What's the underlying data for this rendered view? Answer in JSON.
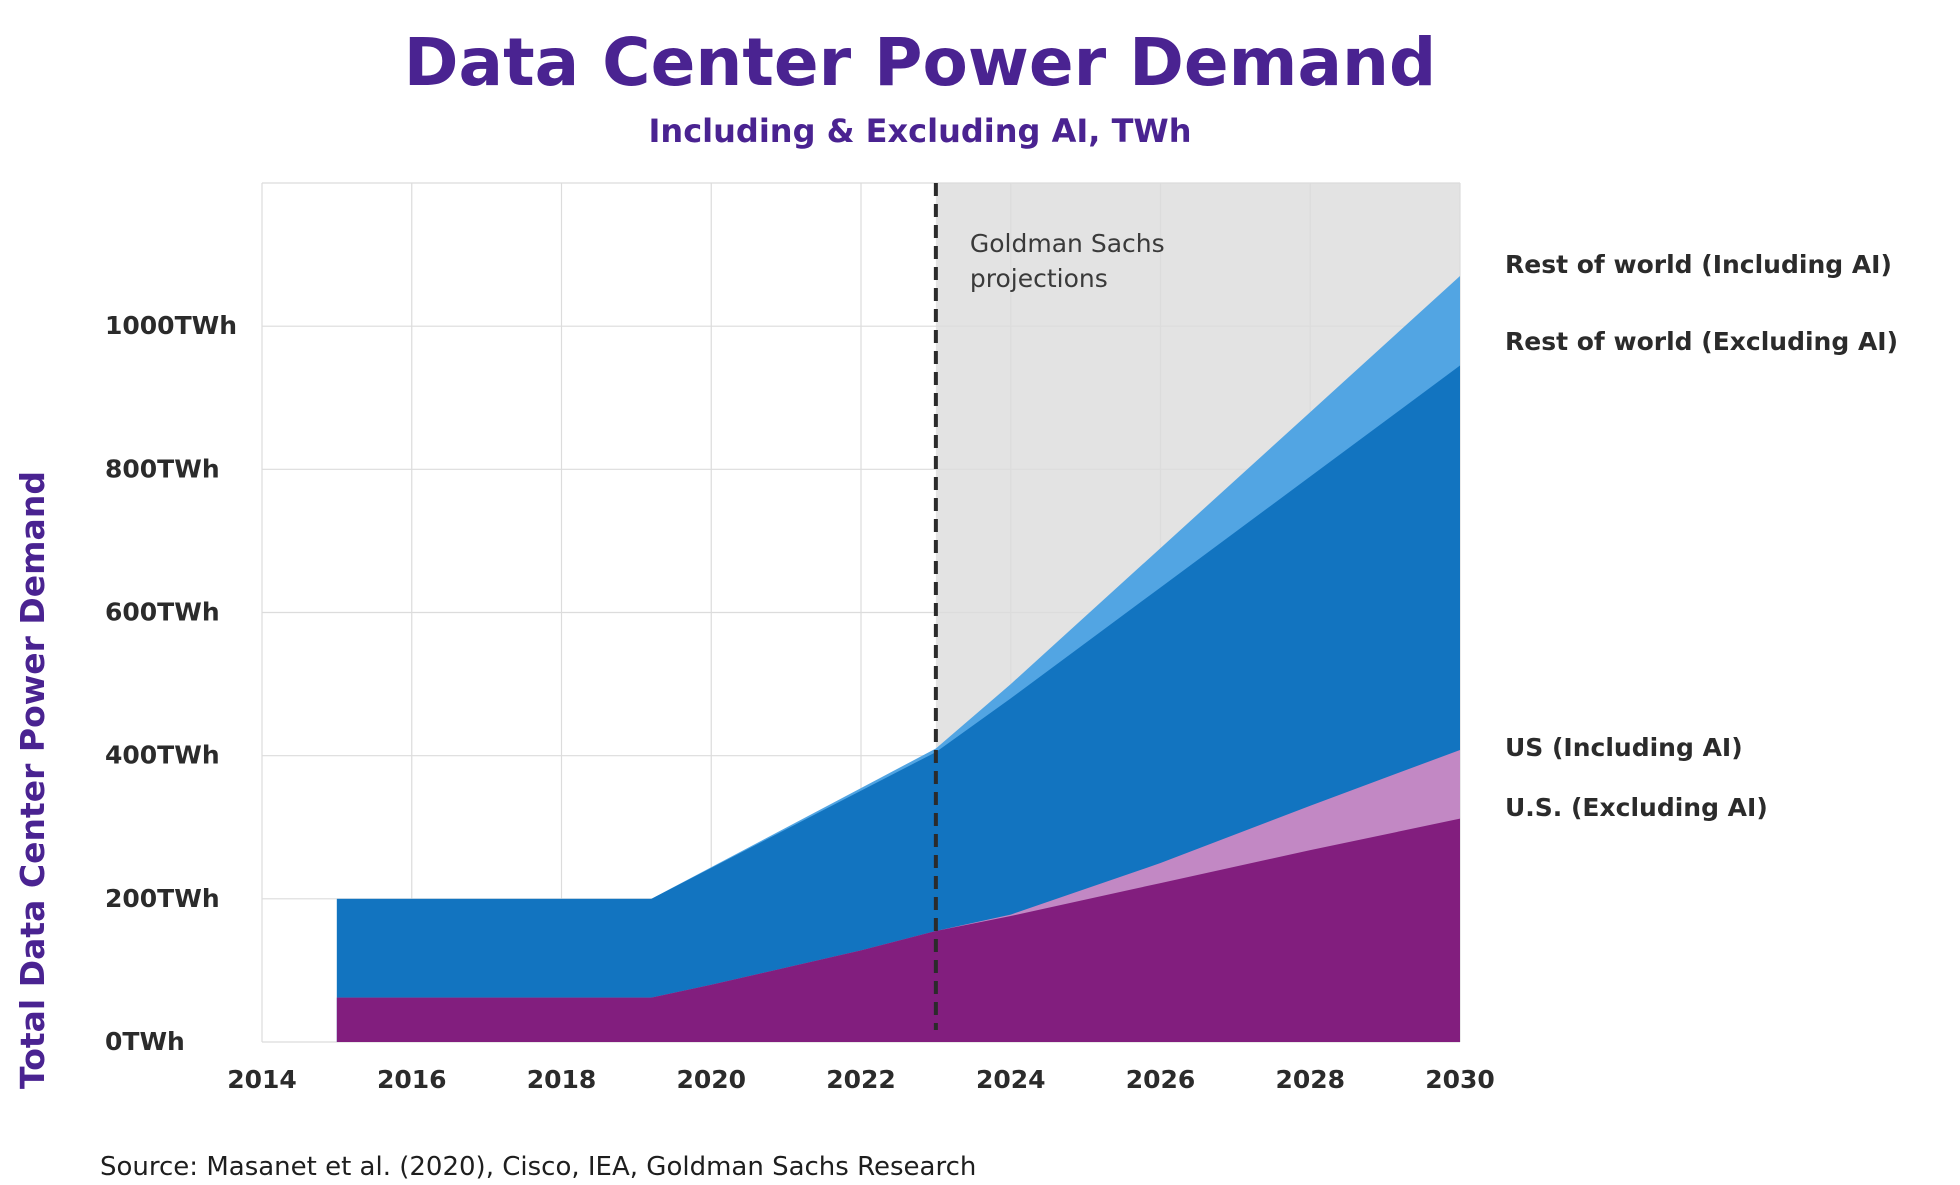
{
  "chart_data": {
    "type": "area",
    "title": "Data Center Power Demand",
    "subtitle": "Including & Excluding AI, TWh",
    "ylabel": "Total Data Center Power Demand",
    "xlabel": "",
    "xlim": [
      2014,
      2030
    ],
    "ylim": [
      0,
      1200
    ],
    "x_ticks": [
      {
        "value": 2014,
        "label": "2014"
      },
      {
        "value": 2016,
        "label": "2016"
      },
      {
        "value": 2018,
        "label": "2018"
      },
      {
        "value": 2020,
        "label": "2020"
      },
      {
        "value": 2022,
        "label": "2022"
      },
      {
        "value": 2024,
        "label": "2024"
      },
      {
        "value": 2026,
        "label": "2026"
      },
      {
        "value": 2028,
        "label": "2028"
      },
      {
        "value": 2030,
        "label": "2030"
      }
    ],
    "y_ticks": [
      {
        "value": 0,
        "label": "0TWh"
      },
      {
        "value": 200,
        "label": "200TWh"
      },
      {
        "value": 400,
        "label": "400TWh"
      },
      {
        "value": 600,
        "label": "600TWh"
      },
      {
        "value": 800,
        "label": "800TWh"
      },
      {
        "value": 1000,
        "label": "1000TWh"
      }
    ],
    "grid": true,
    "projection": {
      "start": 2023,
      "label_line1": "Goldman Sachs",
      "label_line2": "projections"
    },
    "series": [
      {
        "name": "Rest of world (Including AI)",
        "color": "#52a5e3",
        "points": [
          [
            2015,
            200
          ],
          [
            2019.2,
            200
          ],
          [
            2023,
            410
          ],
          [
            2024,
            500
          ],
          [
            2026,
            690
          ],
          [
            2028,
            880
          ],
          [
            2030,
            1070
          ]
        ]
      },
      {
        "name": "Rest of world (Excluding AI)",
        "color": "#1274c0",
        "points": [
          [
            2015,
            200
          ],
          [
            2019.2,
            200
          ],
          [
            2023,
            405
          ],
          [
            2024,
            480
          ],
          [
            2026,
            635
          ],
          [
            2028,
            790
          ],
          [
            2030,
            945
          ]
        ]
      },
      {
        "name": "US (Including AI)",
        "color": "#c288c4",
        "points": [
          [
            2015,
            62
          ],
          [
            2019.2,
            62
          ],
          [
            2020,
            80
          ],
          [
            2022,
            128
          ],
          [
            2023,
            155
          ],
          [
            2024,
            178
          ],
          [
            2026,
            250
          ],
          [
            2028,
            330
          ],
          [
            2030,
            408
          ]
        ]
      },
      {
        "name": "U.S. (Excluding AI)",
        "color": "#821e7e",
        "points": [
          [
            2015,
            62
          ],
          [
            2019.2,
            62
          ],
          [
            2020,
            80
          ],
          [
            2022,
            128
          ],
          [
            2023,
            155
          ],
          [
            2024,
            176
          ],
          [
            2026,
            222
          ],
          [
            2028,
            268
          ],
          [
            2030,
            312
          ]
        ]
      }
    ]
  },
  "source": "Source: Masanet et al. (2020), Cisco, IEA, Goldman Sachs Research",
  "colors": {
    "title": "#4a2391",
    "projection_bg": "#e3e3e3",
    "grid": "#dcdcdc"
  }
}
